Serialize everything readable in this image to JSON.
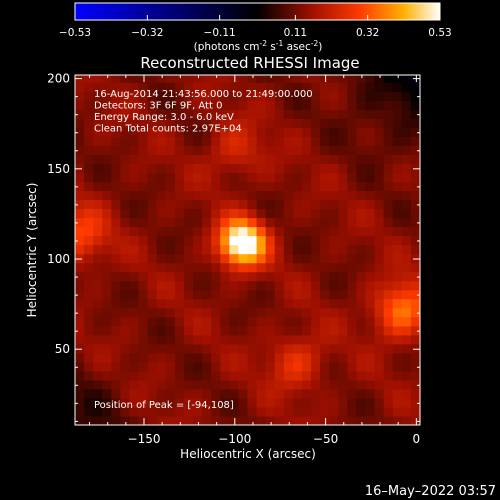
{
  "colorbar": {
    "ticks": [
      "-0.53",
      "-0.32",
      "-0.11",
      "0.11",
      "0.32",
      "0.53"
    ],
    "tick_values": [
      -0.53,
      -0.32,
      -0.11,
      0.11,
      0.32,
      0.53
    ],
    "units_prefix": "(photons cm",
    "units_exp1": "-2",
    "units_mid1": " s",
    "units_exp2": "-1",
    "units_mid2": " asec",
    "units_exp3": "-2",
    "units_suffix": ")",
    "colormap": "blue-black-red-yellow-white"
  },
  "chart_data": {
    "type": "heatmap",
    "title": "Reconstructed RHESSI Image",
    "xlabel": "Heliocentric X (arcsec)",
    "ylabel": "Heliocentric Y (arcsec)",
    "xlim": [
      -188,
      2
    ],
    "ylim": [
      8,
      202
    ],
    "x_ticks": [
      -150,
      -100,
      -50,
      0
    ],
    "x_tick_labels": [
      "−150",
      "−100",
      "−50",
      "0"
    ],
    "y_ticks": [
      50,
      100,
      150,
      200
    ],
    "y_tick_labels": [
      "50",
      "100",
      "150",
      "200"
    ],
    "info_lines": [
      "16-Aug-2014 21:43:56.000 to 21:49:00.000",
      "Detectors: 3F 6F 9F, Att 0",
      "Energy Range: 3.0 - 6.0 keV",
      "Clean    Total counts: 2.97E+04"
    ],
    "peak_label": "Position of Peak = [-94,108]",
    "sources": [
      {
        "x": -96,
        "y": 109,
        "peak": 0.53
      },
      {
        "x": -186,
        "y": 113,
        "peak": 0.24
      },
      {
        "x": -8,
        "y": 72,
        "peak": 0.3
      },
      {
        "x": -66,
        "y": 43,
        "peak": 0.2
      },
      {
        "x": -100,
        "y": 160,
        "peak": 0.17
      }
    ],
    "background_level": 0.13,
    "faint_region": "top-right corner"
  },
  "footer": {
    "timestamp": "16–May–2022 03:57"
  }
}
